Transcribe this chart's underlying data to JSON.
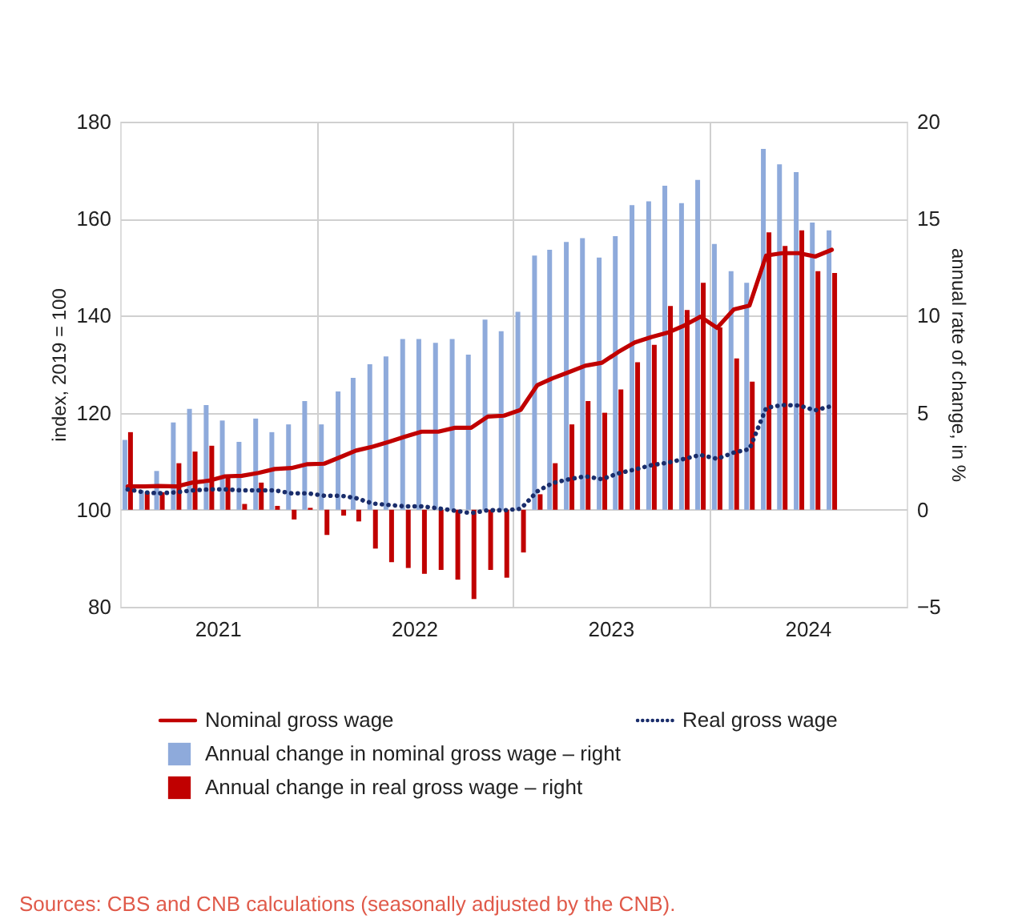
{
  "chart_data": {
    "type": "bar",
    "x": [
      "2021-01-15",
      "2021-02-15",
      "2021-03-15",
      "2021-04-15",
      "2021-05-15",
      "2021-06-15",
      "2021-07-15",
      "2021-08-15",
      "2021-09-15",
      "2021-10-15",
      "2021-11-15",
      "2021-12-15",
      "2022-01-15",
      "2022-02-15",
      "2022-03-15",
      "2022-04-15",
      "2022-05-15",
      "2022-06-15",
      "2022-07-15",
      "2022-08-15",
      "2022-09-15",
      "2022-10-15",
      "2022-11-15",
      "2022-12-15",
      "2023-01-15",
      "2023-02-15",
      "2023-03-15",
      "2023-04-15",
      "2023-05-15",
      "2023-06-15",
      "2023-07-15",
      "2023-08-15",
      "2023-09-15",
      "2023-10-15",
      "2023-11-15",
      "2023-12-15",
      "2024-01-15",
      "2024-02-15",
      "2024-03-15",
      "2024-04-15",
      "2024-05-15",
      "2024-06-15",
      "2024-07-15",
      "2024-08-15"
    ],
    "series": [
      {
        "name": "Annual change in nominal gross wage – right",
        "axis": "y2",
        "color": "#8eaadb",
        "values": [
          3.6,
          1.0,
          2.0,
          4.5,
          5.2,
          5.4,
          4.6,
          3.5,
          4.7,
          4.0,
          4.4,
          5.6,
          4.4,
          6.1,
          6.8,
          7.5,
          7.9,
          8.8,
          8.8,
          8.6,
          8.8,
          8.0,
          9.8,
          9.2,
          10.2,
          13.1,
          13.4,
          13.8,
          14.0,
          13.0,
          14.1,
          15.7,
          15.9,
          16.7,
          15.8,
          17.0,
          13.7,
          12.3,
          11.7,
          18.6,
          17.8,
          17.4,
          14.8,
          14.4
        ]
      },
      {
        "name": "Annual change in real gross wage – right",
        "axis": "y2",
        "color": "#c00000",
        "values": [
          4.0,
          0.9,
          0.9,
          2.4,
          3.0,
          3.3,
          1.7,
          0.3,
          1.4,
          0.2,
          -0.5,
          0.1,
          -1.3,
          -0.3,
          -0.6,
          -2.0,
          -2.7,
          -3.0,
          -3.3,
          -3.1,
          -3.6,
          -4.6,
          -3.1,
          -3.5,
          -2.2,
          0.8,
          2.4,
          4.4,
          5.6,
          5.0,
          6.2,
          7.6,
          8.5,
          10.5,
          10.3,
          11.7,
          9.4,
          7.8,
          6.6,
          14.3,
          13.6,
          14.4,
          12.3,
          12.2
        ]
      },
      {
        "name": "Nominal gross wage",
        "type": "line",
        "axis": "y",
        "color": "#c00000",
        "line_style": "solid",
        "values": [
          104.8,
          104.8,
          104.9,
          104.8,
          105.6,
          106.0,
          106.9,
          107.0,
          107.6,
          108.4,
          108.6,
          109.4,
          109.5,
          110.9,
          112.2,
          113.0,
          114.0,
          115.1,
          116.1,
          116.1,
          116.9,
          116.9,
          119.2,
          119.4,
          120.6,
          125.7,
          127.1,
          128.4,
          129.7,
          130.3,
          132.5,
          134.5,
          135.6,
          136.5,
          138.0,
          139.8,
          137.5,
          141.3,
          142.1,
          152.4,
          152.9,
          152.9,
          152.2,
          153.6
        ]
      },
      {
        "name": "Real gross wage",
        "type": "line",
        "axis": "y",
        "color": "#1a2d6b",
        "line_style": "dotted",
        "values": [
          104.2,
          103.6,
          103.4,
          103.6,
          104.0,
          104.2,
          104.2,
          104.0,
          104.0,
          104.0,
          103.4,
          103.4,
          102.9,
          102.9,
          102.4,
          101.3,
          101.0,
          100.7,
          100.7,
          100.3,
          99.8,
          99.3,
          99.9,
          99.9,
          100.2,
          103.8,
          105.5,
          106.3,
          106.9,
          106.3,
          107.5,
          108.3,
          109.2,
          109.7,
          110.5,
          111.3,
          110.5,
          111.8,
          112.5,
          121.0,
          121.6,
          121.5,
          120.5,
          121.4
        ]
      }
    ],
    "ylabel": "index, 2019 = 100",
    "y2label": "annual rate of change, in %",
    "ylim": [
      80,
      180
    ],
    "yticks": [
      80,
      100,
      120,
      140,
      160,
      180
    ],
    "y2lim": [
      -5,
      20
    ],
    "y2ticks": [
      -5,
      0,
      5,
      10,
      15,
      20
    ],
    "xlim": [
      "2021-01-01",
      "2025-01-01"
    ],
    "xticks": [
      {
        "value": "2021-07-01",
        "label": "2021"
      },
      {
        "value": "2022-01-01",
        "label": null
      },
      {
        "value": "2022-07-01",
        "label": "2022"
      },
      {
        "value": "2023-01-01",
        "label": null
      },
      {
        "value": "2023-07-01",
        "label": "2023"
      },
      {
        "value": "2024-01-01",
        "label": null
      },
      {
        "value": "2024-07-01",
        "label": "2024"
      }
    ],
    "grid": true,
    "legend": "bottom",
    "annotations": [
      "Sources: CBS and CNB calculations (seasonally adjusted by the CNB)."
    ]
  }
}
